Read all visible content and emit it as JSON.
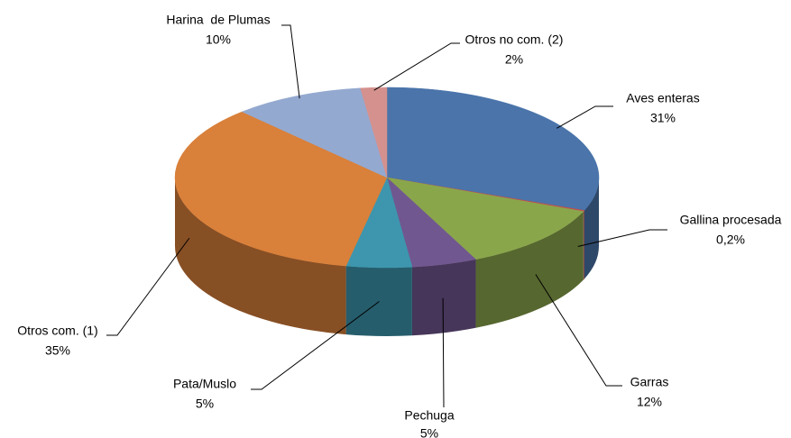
{
  "chart_data": {
    "type": "pie",
    "categories": [
      "Aves enteras",
      "Gallina procesada",
      "Garras",
      "Pechuga",
      "Pata/Muslo",
      "Otros com. (1)",
      "Harina  de Plumas",
      "Otros no com. (2)"
    ],
    "values": [
      31,
      0.2,
      12,
      5,
      5,
      35,
      10,
      2
    ],
    "value_labels": [
      "31%",
      "0,2%",
      "12%",
      "5%",
      "5%",
      "35%",
      "10%",
      "2%"
    ],
    "colors": [
      "#4a74aa",
      "#c0504d",
      "#8aa64b",
      "#71578f",
      "#3d96ae",
      "#d9803a",
      "#94a9d0",
      "#d4918e"
    ]
  }
}
